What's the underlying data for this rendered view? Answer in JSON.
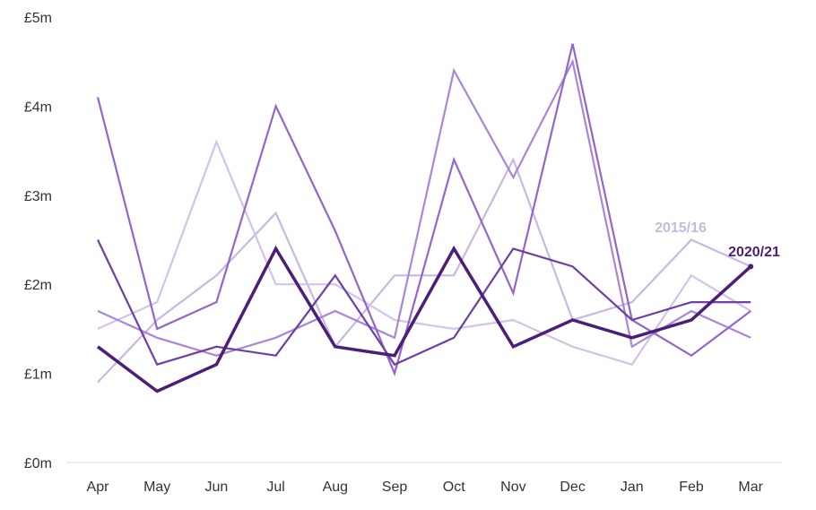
{
  "chart_data": {
    "type": "line",
    "categories": [
      "Apr",
      "May",
      "Jun",
      "Jul",
      "Aug",
      "Sep",
      "Oct",
      "Nov",
      "Dec",
      "Jan",
      "Feb",
      "Mar"
    ],
    "y_ticks": [
      "£0m",
      "£1m",
      "£2m",
      "£3m",
      "£4m",
      "£5m"
    ],
    "ylim": [
      0,
      5
    ],
    "grid": false,
    "series": [
      {
        "name": "2015/16",
        "color": "#c9b8e2",
        "values": [
          0.9,
          1.6,
          2.1,
          2.8,
          1.3,
          2.1,
          2.1,
          3.4,
          1.6,
          1.8,
          2.5,
          2.2
        ],
        "labeled": true
      },
      {
        "color": "#d2c4e8",
        "values": [
          1.5,
          1.8,
          3.6,
          2.0,
          2.0,
          1.6,
          1.5,
          1.6,
          1.3,
          1.1,
          2.1,
          1.7
        ]
      },
      {
        "color": "#a987d4",
        "values": [
          1.7,
          1.4,
          1.2,
          1.4,
          1.7,
          1.4,
          4.4,
          3.2,
          4.5,
          1.3,
          1.7,
          1.4
        ]
      },
      {
        "color": "#9366cc",
        "values": [
          4.1,
          1.5,
          1.8,
          4.0,
          2.6,
          1.0,
          3.4,
          1.9,
          4.7,
          1.6,
          1.2,
          1.7
        ]
      },
      {
        "color": "#6e3fa6",
        "values": [
          2.5,
          1.1,
          1.3,
          1.2,
          2.1,
          1.1,
          1.4,
          2.4,
          2.2,
          1.6,
          1.8,
          1.8
        ]
      },
      {
        "name": "2020/21",
        "color": "#4b1f78",
        "values": [
          1.3,
          0.8,
          1.1,
          2.4,
          1.3,
          1.2,
          2.4,
          1.3,
          1.6,
          1.4,
          1.6,
          2.2
        ],
        "labeled": true,
        "emphasis": true
      }
    ]
  }
}
